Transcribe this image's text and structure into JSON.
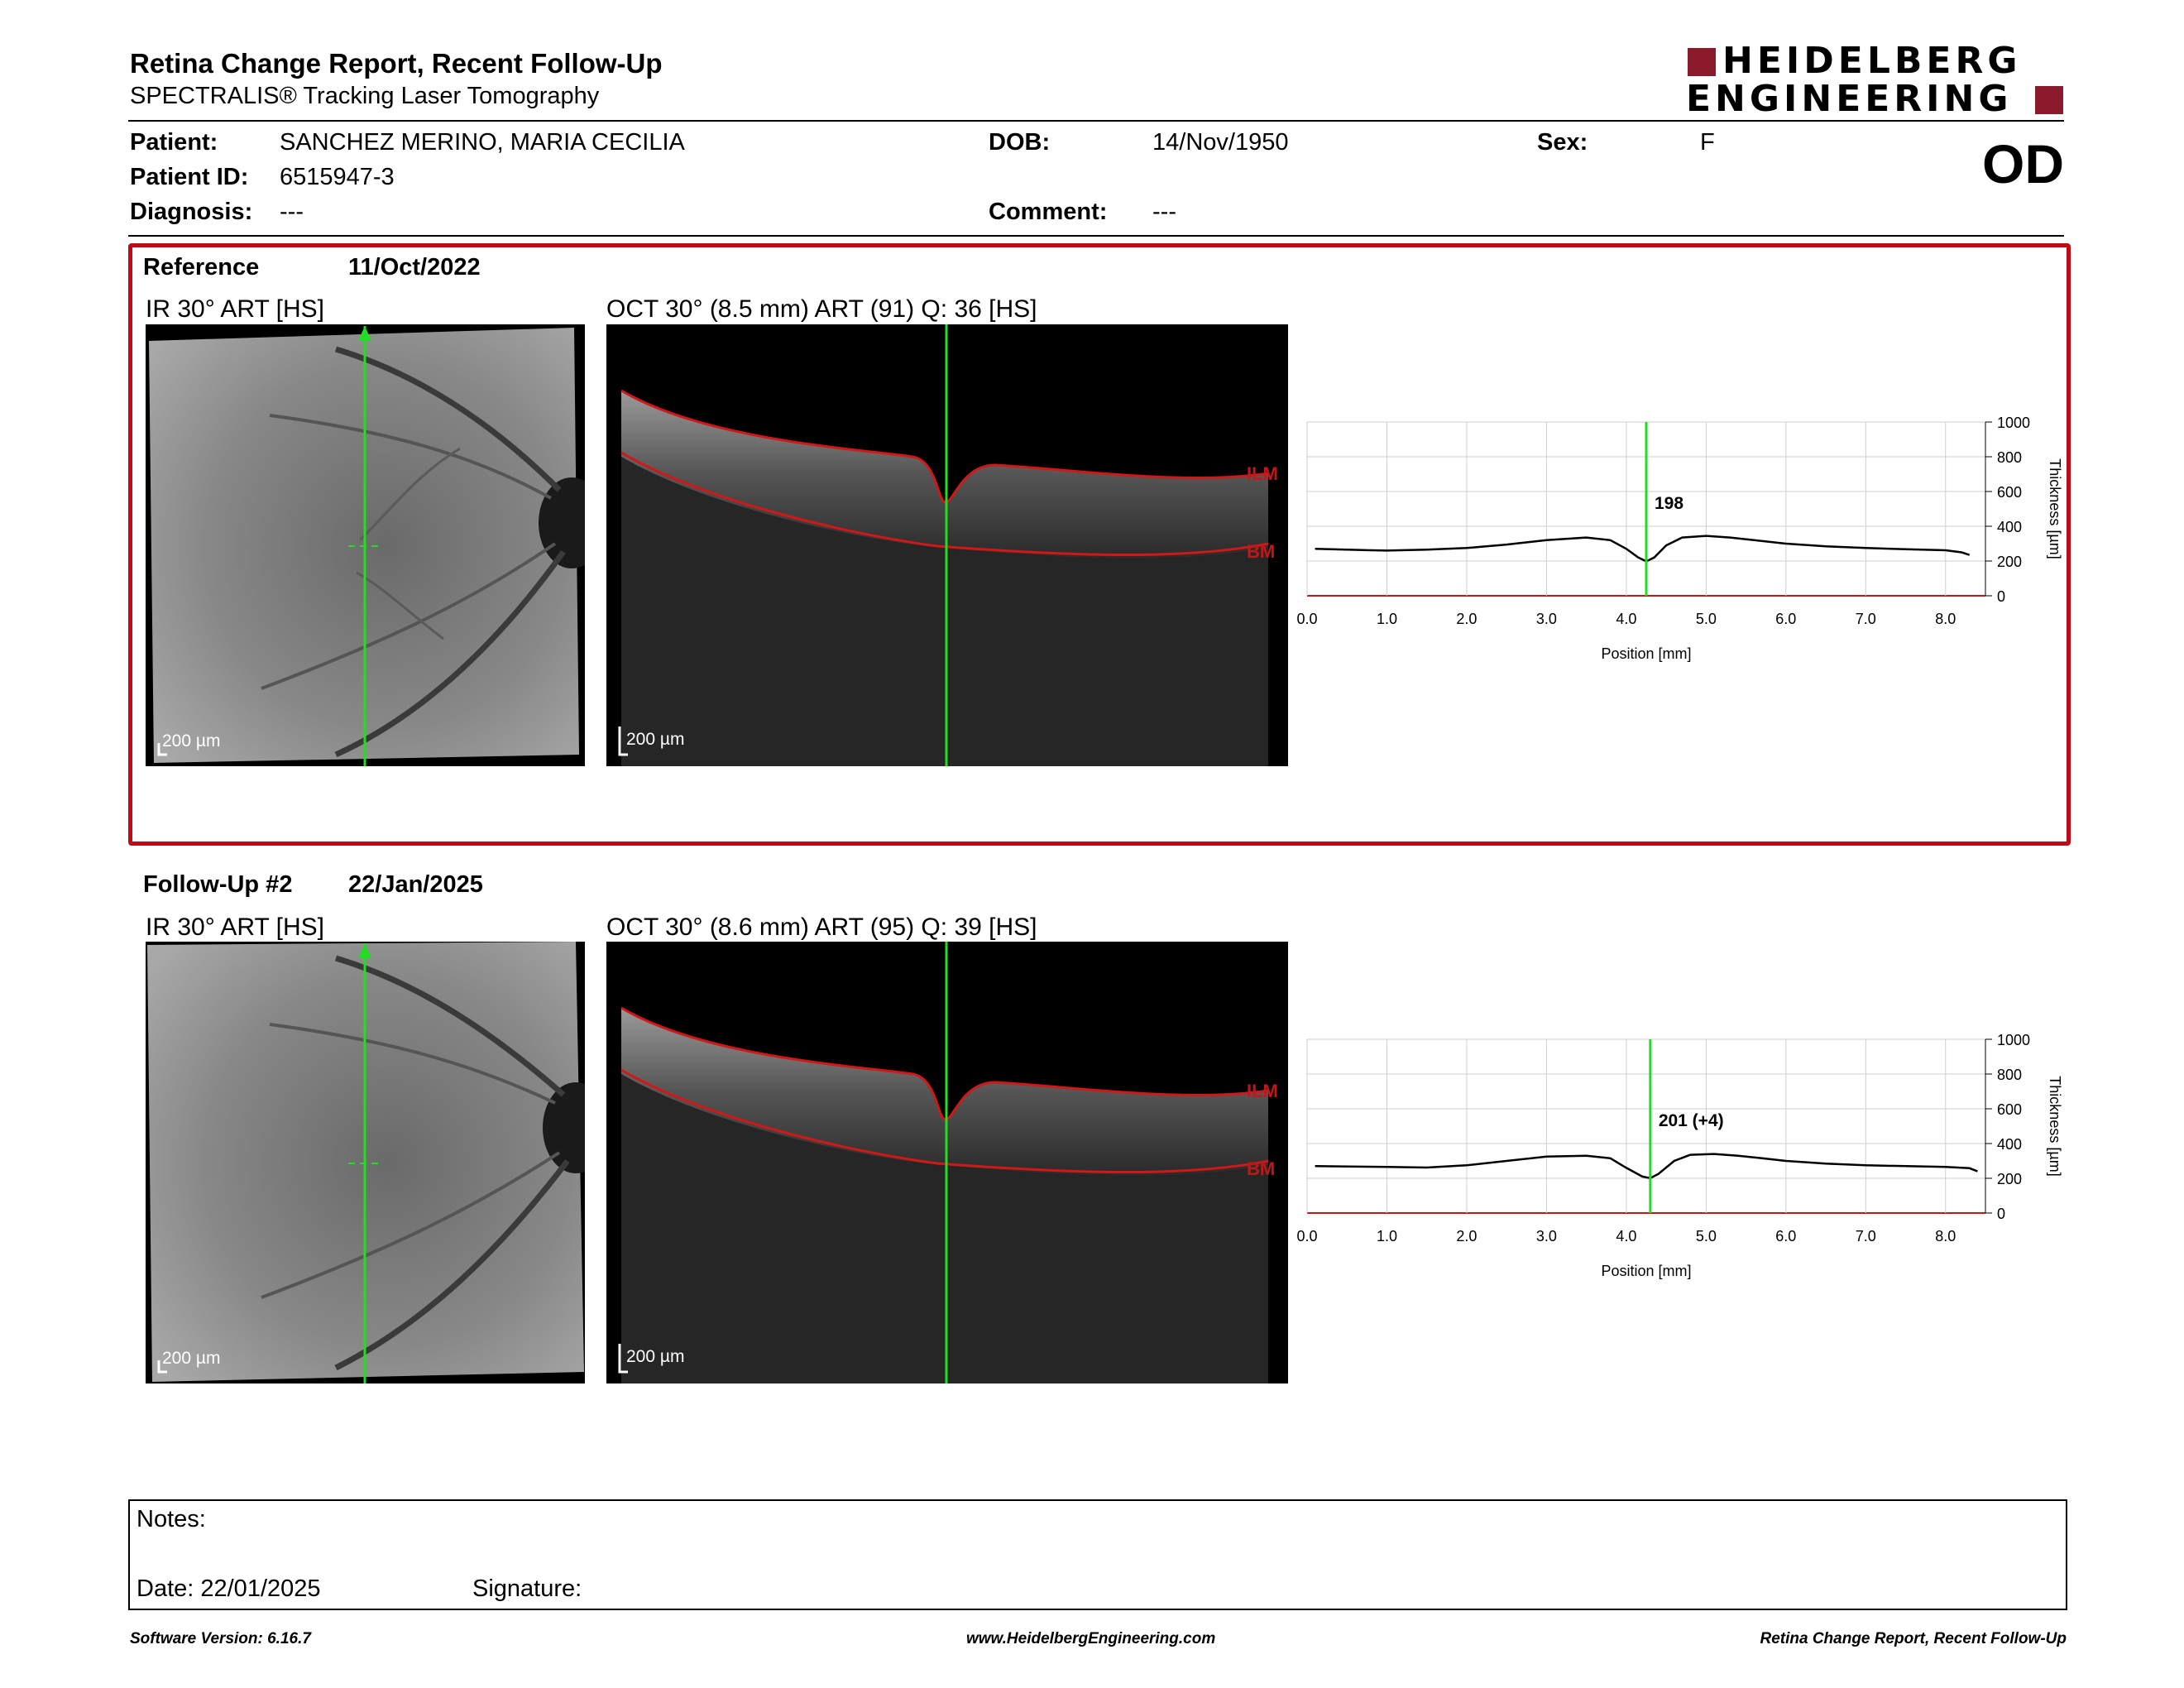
{
  "header": {
    "title": "Retina Change Report, Recent Follow-Up",
    "subtitle": "SPECTRALIS® Tracking Laser Tomography",
    "logo_line1": "HEIDELBERG",
    "logo_line2": "ENGINEERING",
    "brand_color": "#8b1a2b"
  },
  "patient": {
    "patient_label": "Patient:",
    "patient_value": "SANCHEZ MERINO, MARIA CECILIA",
    "dob_label": "DOB:",
    "dob_value": "14/Nov/1950",
    "sex_label": "Sex:",
    "sex_value": "F",
    "id_label": "Patient ID:",
    "id_value": "6515947-3",
    "diagnosis_label": "Diagnosis:",
    "diagnosis_value": "---",
    "comment_label": "Comment:",
    "comment_value": "---",
    "eye": "OD"
  },
  "reference": {
    "label": "Reference",
    "date": "11/Oct/2022",
    "ir_label": "IR 30° ART [HS]",
    "oct_label": "OCT 30° (8.5 mm) ART (91) Q: 36 [HS]",
    "scale": "200 µm",
    "ilm": "ILM",
    "bm": "BM",
    "highlight_color": "#c10a16"
  },
  "followup": {
    "label": "Follow-Up #2",
    "date": "22/Jan/2025",
    "ir_label": "IR 30° ART [HS]",
    "oct_label": "OCT 30° (8.6 mm) ART (95) Q: 39 [HS]",
    "scale": "200 µm",
    "ilm": "ILM",
    "bm": "BM"
  },
  "chart_data": [
    {
      "type": "line",
      "xlabel": "Position [mm]",
      "ylabel": "Thickness [µm]",
      "xlim": [
        0,
        8.5
      ],
      "ylim": [
        0,
        1000
      ],
      "x_ticks": [
        "0.0",
        "1.0",
        "2.0",
        "3.0",
        "4.0",
        "5.0",
        "6.0",
        "7.0",
        "8.0"
      ],
      "y_ticks": [
        "0",
        "200",
        "400",
        "600",
        "800",
        "1000"
      ],
      "marker_x": 4.25,
      "marker_label": "198",
      "marker_color": "#22dd22",
      "series": [
        {
          "x": [
            0.1,
            0.5,
            1.0,
            1.5,
            2.0,
            2.5,
            3.0,
            3.5,
            3.8,
            4.0,
            4.15,
            4.25,
            4.35,
            4.5,
            4.7,
            5.0,
            5.3,
            5.6,
            6.0,
            6.5,
            7.0,
            7.5,
            8.0,
            8.2,
            8.3
          ],
          "values": [
            270,
            265,
            260,
            265,
            275,
            295,
            320,
            335,
            320,
            270,
            220,
            198,
            220,
            290,
            335,
            345,
            335,
            320,
            300,
            285,
            275,
            268,
            262,
            250,
            235
          ]
        }
      ]
    },
    {
      "type": "line",
      "xlabel": "Position [mm]",
      "ylabel": "Thickness [µm]",
      "xlim": [
        0,
        8.5
      ],
      "ylim": [
        0,
        1000
      ],
      "x_ticks": [
        "0.0",
        "1.0",
        "2.0",
        "3.0",
        "4.0",
        "5.0",
        "6.0",
        "7.0",
        "8.0"
      ],
      "y_ticks": [
        "0",
        "200",
        "400",
        "600",
        "800",
        "1000"
      ],
      "marker_x": 4.3,
      "marker_label": "201 (+4)",
      "marker_color": "#22dd22",
      "series": [
        {
          "x": [
            0.1,
            0.5,
            1.0,
            1.5,
            2.0,
            2.5,
            3.0,
            3.5,
            3.8,
            4.0,
            4.2,
            4.3,
            4.4,
            4.6,
            4.8,
            5.1,
            5.4,
            5.7,
            6.0,
            6.5,
            7.0,
            7.5,
            8.0,
            8.3,
            8.4
          ],
          "values": [
            270,
            268,
            265,
            262,
            275,
            300,
            325,
            330,
            315,
            260,
            210,
            201,
            225,
            300,
            335,
            340,
            330,
            315,
            300,
            285,
            275,
            270,
            265,
            258,
            240
          ]
        }
      ]
    }
  ],
  "notes": {
    "notes_label": "Notes:",
    "date_label": "Date: 22/01/2025",
    "signature_label": "Signature:"
  },
  "footer": {
    "left": "Software Version: 6.16.7",
    "center": "www.HeidelbergEngineering.com",
    "right": "Retina Change Report, Recent Follow-Up"
  }
}
